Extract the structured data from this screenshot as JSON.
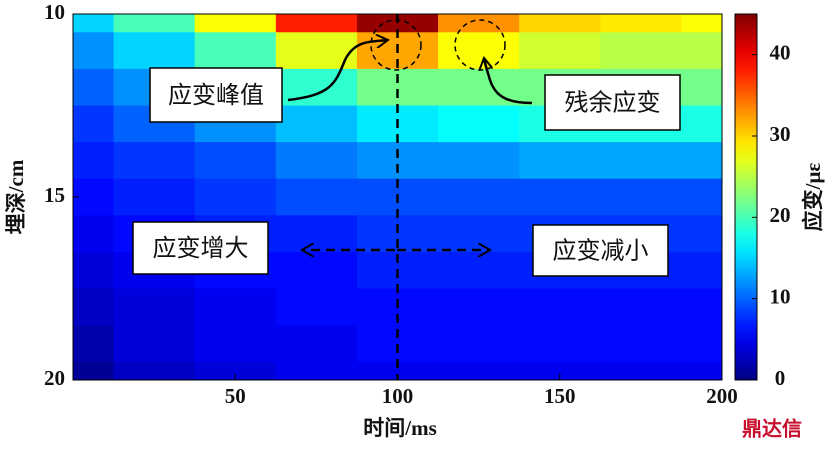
{
  "chart_data": {
    "type": "heatmap",
    "colormap": "jet",
    "xlabel": "时间/ms",
    "ylabel": "埋深/cm",
    "colorbar_label": "应变/με",
    "x": [
      0,
      25,
      50,
      75,
      100,
      125,
      150,
      175,
      200
    ],
    "y": [
      10,
      11,
      12,
      13,
      14,
      15,
      16,
      17,
      18,
      19,
      20
    ],
    "values": [
      [
        15,
        20,
        28,
        38,
        44,
        33,
        30,
        29,
        28
      ],
      [
        12,
        15,
        20,
        27,
        32,
        28,
        26,
        25,
        25
      ],
      [
        10,
        12,
        15,
        19,
        22,
        22,
        22,
        22,
        22
      ],
      [
        8,
        10,
        12,
        14,
        16,
        17,
        18,
        18,
        18
      ],
      [
        7,
        8,
        9,
        11,
        12,
        12,
        13,
        13,
        13
      ],
      [
        6,
        7,
        8,
        9,
        9,
        9,
        9,
        9,
        9
      ],
      [
        5,
        6,
        7,
        7,
        8,
        8,
        8,
        8,
        8
      ],
      [
        4,
        5,
        6,
        6,
        7,
        7,
        7,
        7,
        7
      ],
      [
        3,
        4,
        5,
        6,
        6,
        6,
        6,
        6,
        6
      ],
      [
        2,
        4,
        5,
        5,
        6,
        6,
        6,
        6,
        6
      ],
      [
        1,
        3,
        4,
        5,
        5,
        5,
        5,
        5,
        5
      ]
    ],
    "xlim": [
      0,
      200
    ],
    "xticks": [
      50,
      100,
      150,
      200
    ],
    "ylim": [
      10,
      20
    ],
    "yticks": [
      10,
      15,
      20
    ],
    "y_inverted": true,
    "clim": [
      0,
      45
    ],
    "cticks": [
      0,
      10,
      20,
      30,
      40
    ],
    "vline_x": 100,
    "annotations": [
      "应变峰值",
      "残余应变",
      "应变增大",
      "应变减小"
    ],
    "watermark": "鼎达信"
  }
}
